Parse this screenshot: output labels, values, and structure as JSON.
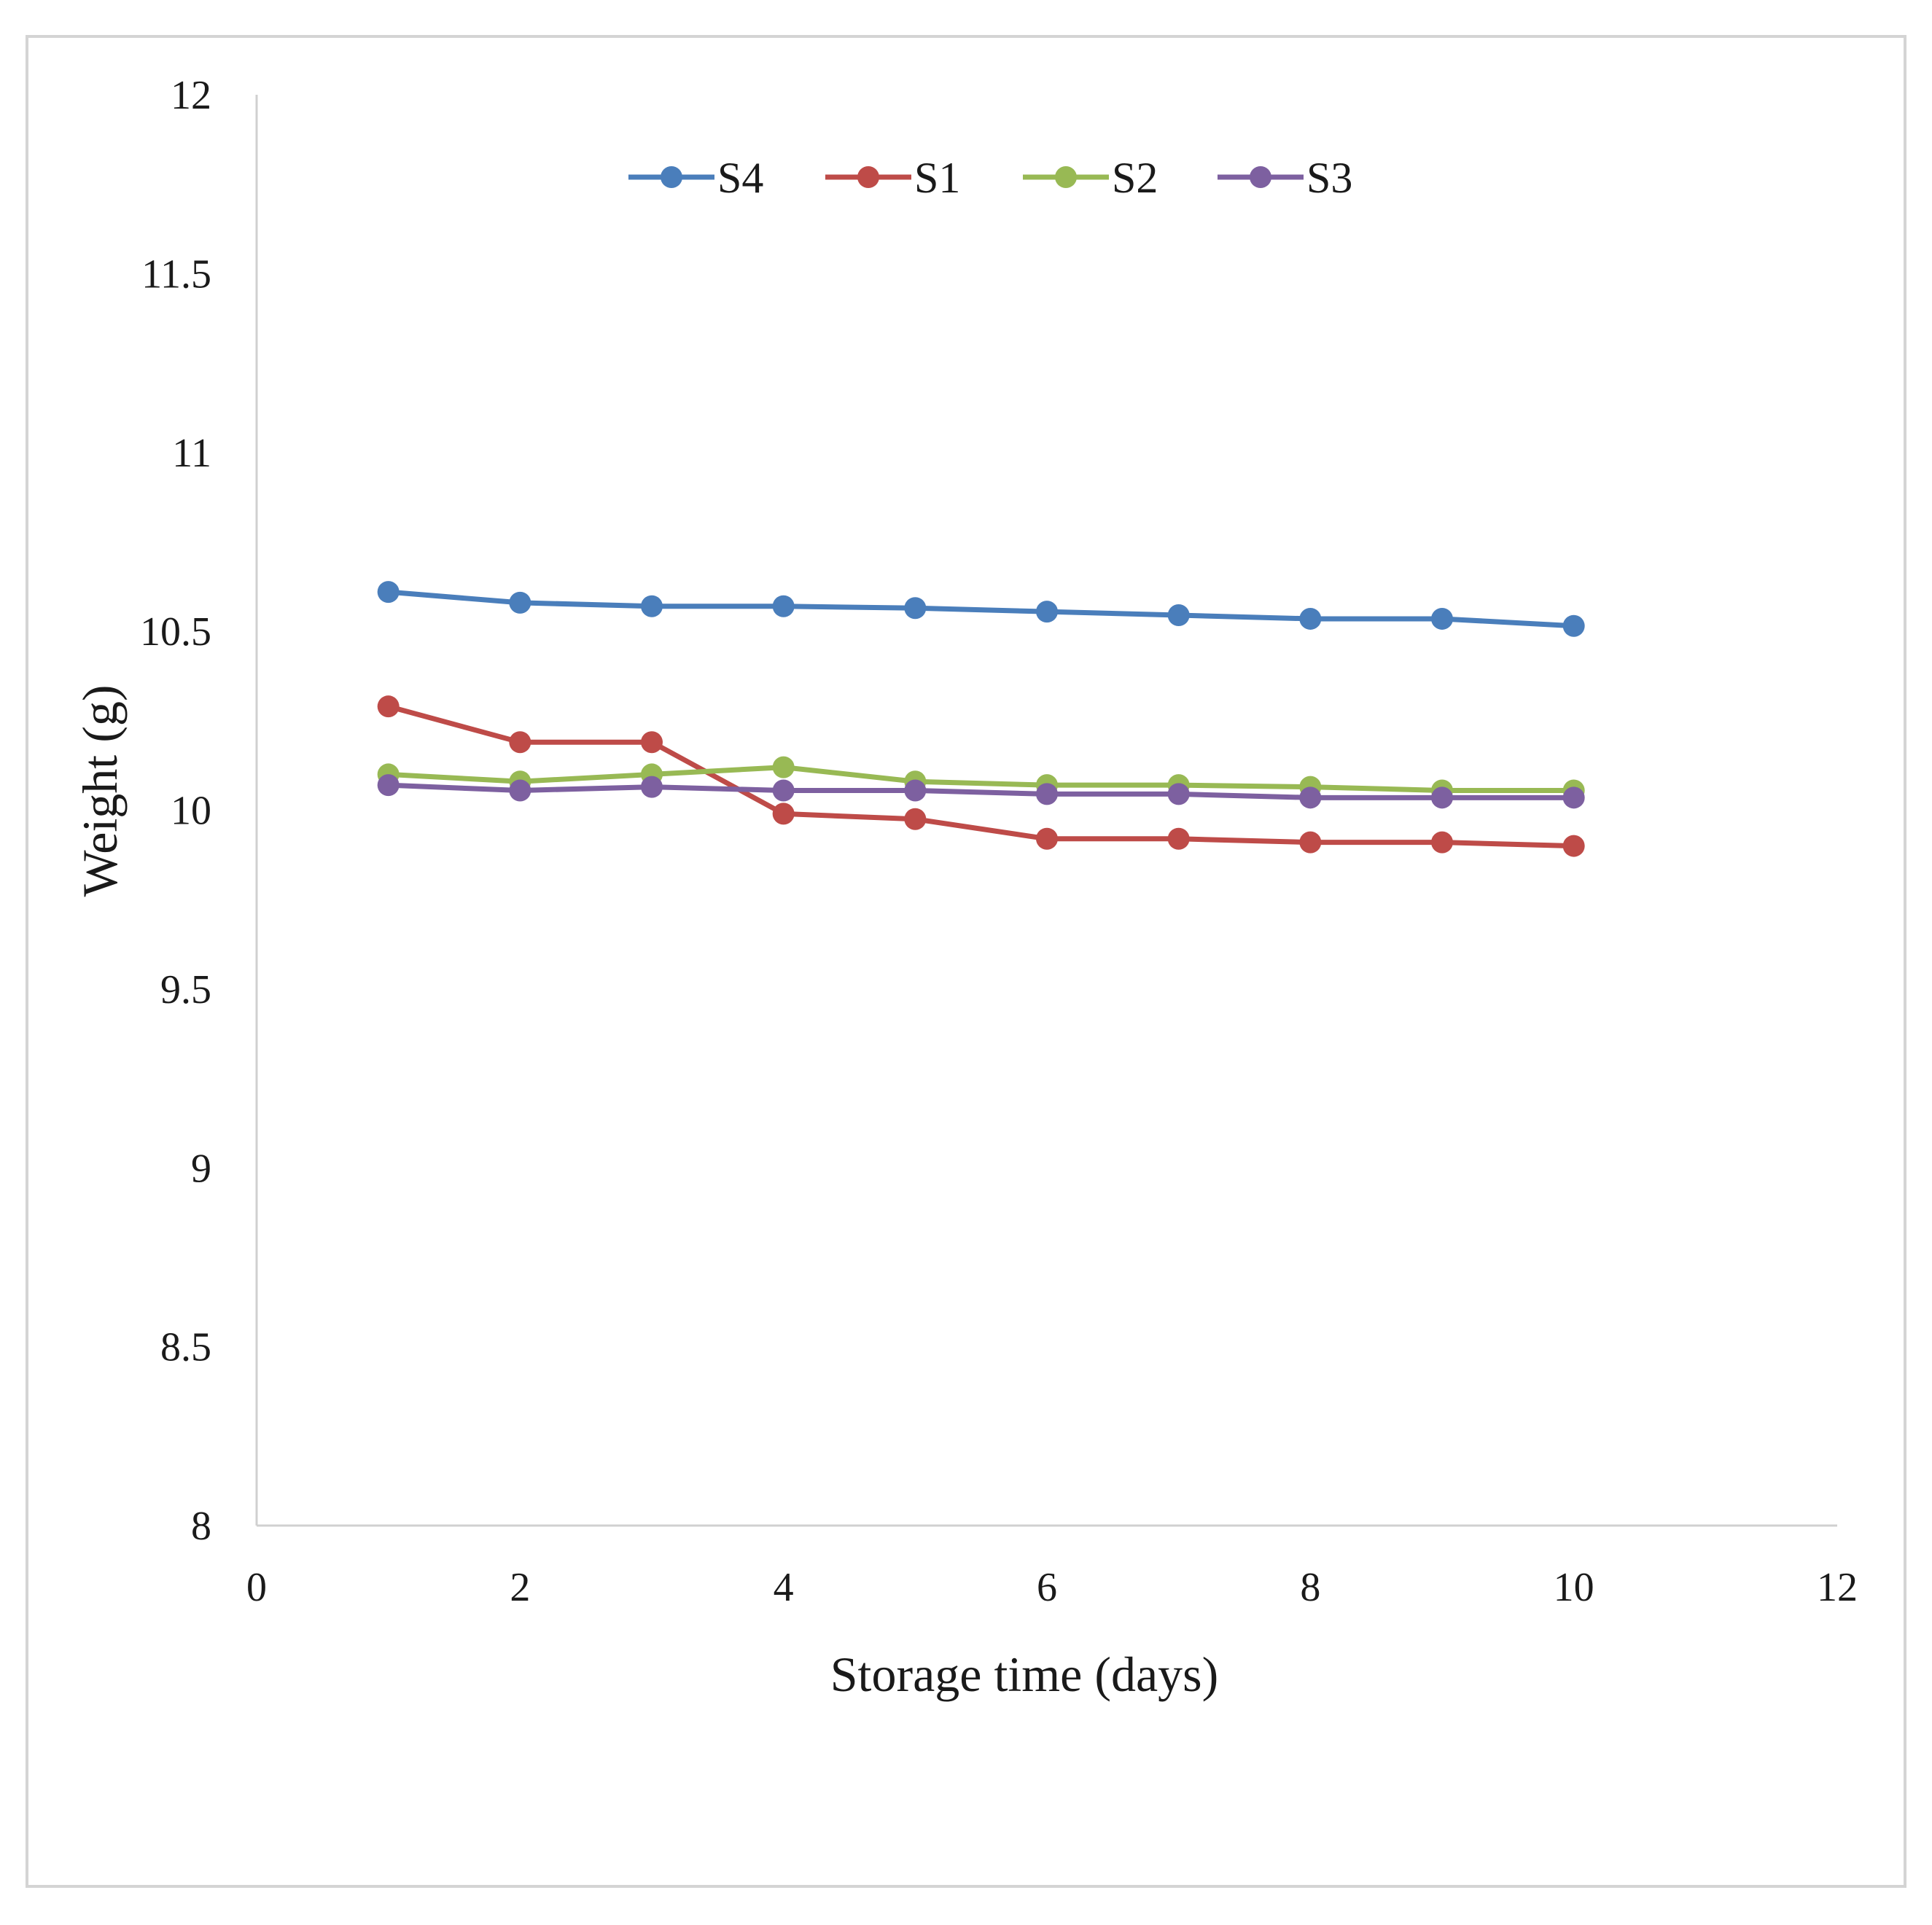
{
  "chart_data": {
    "type": "line",
    "title": "",
    "xlabel": "Storage time (days)",
    "ylabel": "Weight (g)",
    "xlim": [
      0,
      12
    ],
    "ylim": [
      8,
      12
    ],
    "xticks": [
      0,
      2,
      4,
      6,
      8,
      10,
      12
    ],
    "yticks": [
      8,
      8.5,
      9,
      9.5,
      10,
      10.5,
      11,
      11.5,
      12
    ],
    "grid": false,
    "legend_position": "top-center",
    "x": [
      1,
      2,
      3,
      4,
      5,
      6,
      7,
      8,
      9,
      10
    ],
    "series": [
      {
        "name": "S4",
        "color": "#4a7ebb",
        "values": [
          10.61,
          10.58,
          10.57,
          10.57,
          10.565,
          10.555,
          10.545,
          10.535,
          10.535,
          10.515
        ]
      },
      {
        "name": "S1",
        "color": "#be4b48",
        "values": [
          10.29,
          10.19,
          10.19,
          9.99,
          9.975,
          9.92,
          9.92,
          9.91,
          9.91,
          9.9
        ]
      },
      {
        "name": "S2",
        "color": "#98b954",
        "values": [
          10.1,
          10.08,
          10.1,
          10.12,
          10.08,
          10.07,
          10.07,
          10.065,
          10.055,
          10.055
        ]
      },
      {
        "name": "S3",
        "color": "#7d60a0",
        "values": [
          10.07,
          10.055,
          10.065,
          10.055,
          10.055,
          10.045,
          10.045,
          10.035,
          10.035,
          10.035
        ]
      }
    ]
  }
}
